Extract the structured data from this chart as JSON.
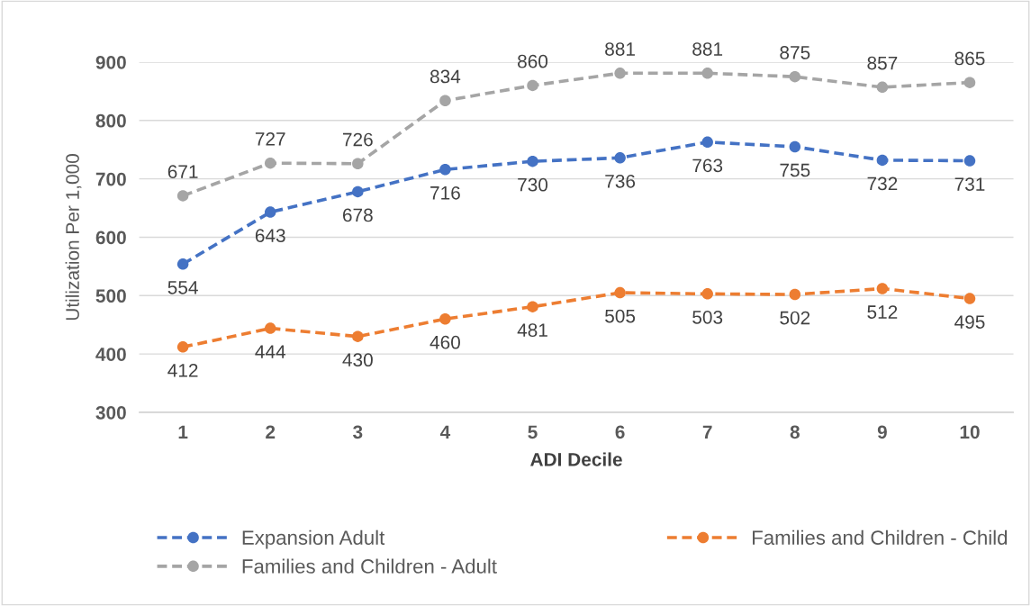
{
  "chart_data": {
    "type": "line",
    "xlabel": "ADI Decile",
    "ylabel": "Utilization Per 1,000",
    "categories": [
      "1",
      "2",
      "3",
      "4",
      "5",
      "6",
      "7",
      "8",
      "9",
      "10"
    ],
    "series": [
      {
        "name": "Expansion Adult",
        "color": "#4472c4",
        "values": [
          554,
          643,
          678,
          716,
          730,
          736,
          763,
          755,
          732,
          731
        ]
      },
      {
        "name": "Families and Children - Child",
        "color": "#ed7d31",
        "values": [
          412,
          444,
          430,
          460,
          481,
          505,
          503,
          502,
          512,
          495
        ]
      },
      {
        "name": "Families and Children - Adult",
        "color": "#a5a5a5",
        "values": [
          671,
          727,
          726,
          834,
          860,
          881,
          881,
          875,
          857,
          865
        ]
      }
    ],
    "ylim": [
      300,
      900
    ],
    "yticks": [
      300,
      400,
      500,
      600,
      700,
      800,
      900
    ],
    "grid": "y",
    "legend": "bottom",
    "marker": "circle",
    "line_style": "dashed",
    "data_labels": true
  }
}
